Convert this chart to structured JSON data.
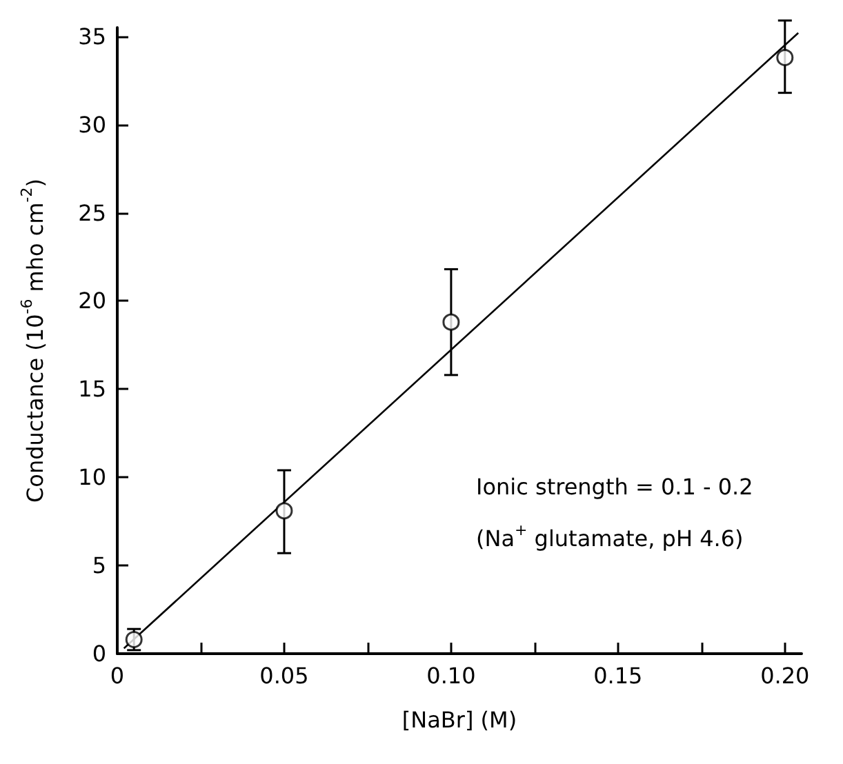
{
  "chart_data": {
    "type": "scatter",
    "xlabel": "[NaBr] (M)",
    "ylabel": "Conductance (10$^{-6}$ mho cm$^{-2}$)",
    "annotations": [
      "Ionic strength = 0.1 - 0.2",
      "(Na$^{+}$ glutamate, pH 4.6)"
    ],
    "marker": "circle",
    "grid": false,
    "xlim": [
      0,
      0.205
    ],
    "xticks": [
      0,
      {
        "value": 0.025,
        "label": null
      },
      0.05,
      {
        "value": 0.075,
        "label": null
      },
      {
        "value": 0.1,
        "label": "0.10"
      },
      {
        "value": 0.125,
        "label": null
      },
      {
        "value": 0.15,
        "label": "0.15"
      },
      {
        "value": 0.175,
        "label": null
      },
      {
        "value": 0.2,
        "label": "0.20"
      }
    ],
    "ylim": [
      0,
      35.5
    ],
    "yticks": [
      0,
      5,
      10,
      15,
      20,
      25,
      30,
      35
    ],
    "series": [
      {
        "color": "#000000",
        "x": [
          0.005,
          0.05,
          0.1,
          0.2
        ],
        "values": [
          0.8,
          8.1,
          18.8,
          33.8
        ],
        "errors": [
          [
            0.2,
            1.4
          ],
          [
            5.7,
            10.4
          ],
          [
            15.8,
            21.8
          ],
          [
            31.8,
            35.9
          ]
        ]
      },
      {
        "type": "line",
        "marker": "none",
        "color": "#000000",
        "x": [
          0.002,
          0.204
        ],
        "values": [
          0.3,
          35.2
        ]
      }
    ]
  }
}
